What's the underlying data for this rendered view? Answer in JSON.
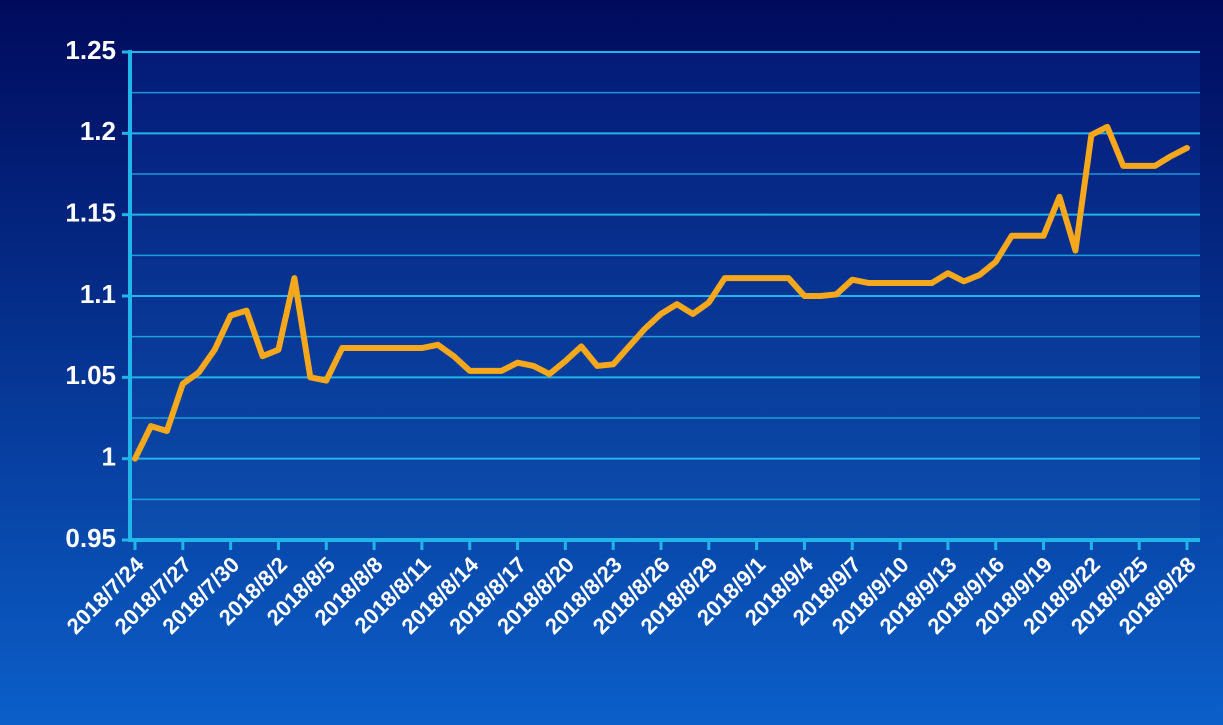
{
  "chart_data": {
    "type": "line",
    "categories": [
      "2018/7/24",
      null,
      null,
      "2018/7/27",
      null,
      null,
      "2018/7/30",
      null,
      null,
      "2018/8/2",
      null,
      null,
      "2018/8/5",
      null,
      null,
      "2018/8/8",
      null,
      null,
      "2018/8/11",
      null,
      null,
      "2018/8/14",
      null,
      null,
      "2018/8/17",
      null,
      null,
      "2018/8/20",
      null,
      null,
      "2018/8/23",
      null,
      null,
      "2018/8/26",
      null,
      null,
      "2018/8/29",
      null,
      null,
      "2018/9/1",
      null,
      null,
      "2018/9/4",
      null,
      null,
      "2018/9/7",
      null,
      null,
      "2018/9/10",
      null,
      null,
      "2018/9/13",
      null,
      null,
      "2018/9/16",
      null,
      null,
      "2018/9/19",
      null,
      null,
      "2018/9/22",
      null,
      null,
      "2018/9/25",
      null,
      null,
      "2018/9/28"
    ],
    "series": [
      {
        "color": "#f5a81c",
        "values": [
          1.0,
          1.02,
          1.017,
          1.046,
          1.053,
          1.067,
          1.088,
          1.091,
          1.063,
          1.067,
          1.111,
          1.05,
          1.048,
          1.068,
          1.068,
          1.068,
          1.068,
          1.068,
          1.068,
          1.07,
          1.063,
          1.054,
          1.054,
          1.054,
          1.059,
          1.057,
          1.052,
          1.06,
          1.069,
          1.057,
          1.058,
          1.069,
          1.08,
          1.089,
          1.095,
          1.089,
          1.096,
          1.111,
          1.111,
          1.111,
          1.111,
          1.111,
          1.1,
          1.1,
          1.101,
          1.11,
          1.108,
          1.108,
          1.108,
          1.108,
          1.108,
          1.114,
          1.109,
          1.113,
          1.121,
          1.137,
          1.137,
          1.137,
          1.161,
          1.128,
          1.199,
          1.204,
          1.18,
          1.18,
          1.18,
          1.186,
          1.191
        ]
      }
    ],
    "ylim": [
      0.95,
      1.25
    ],
    "yticks": [
      0.95,
      1,
      1.05,
      1.1,
      1.15,
      1.2,
      1.25
    ],
    "grid": true,
    "minor_grid": true
  }
}
